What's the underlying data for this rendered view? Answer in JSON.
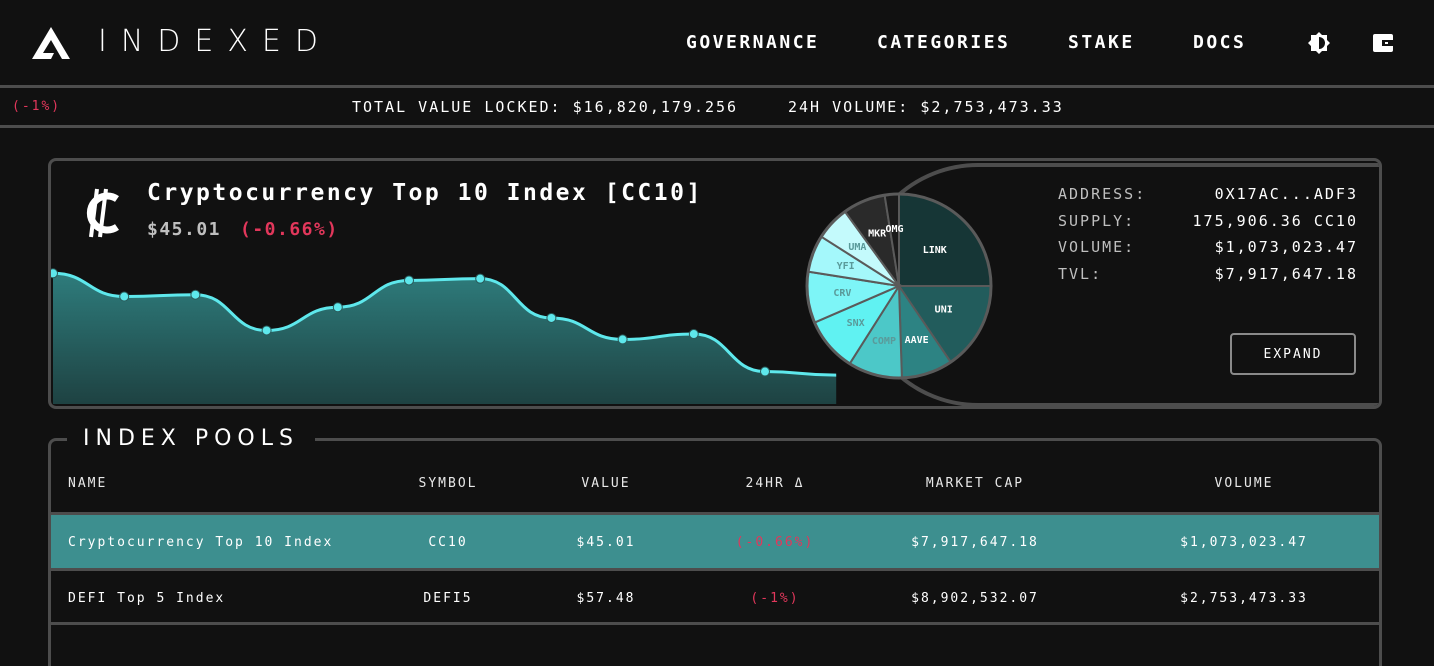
{
  "app": {
    "logo_text": "INDEXED"
  },
  "nav": {
    "governance": "GOVERNANCE",
    "categories": "CATEGORIES",
    "stake": "STAKE",
    "docs": "DOCS"
  },
  "icons": {
    "theme": "brightness-icon",
    "wallet": "wallet-icon",
    "logo": "indexed-logo-icon",
    "card_symbol": "colon-currency-icon"
  },
  "ticker": {
    "delta": "(-1%)",
    "tvl": "TOTAL VALUE LOCKED: $16,820,179.256",
    "volume": "24H VOLUME: $2,753,473.33"
  },
  "index_card": {
    "title": "Cryptocurrency Top 10 Index [CC10]",
    "price": "$45.01",
    "delta": "(-0.66%)",
    "stats": [
      {
        "key": "ADDRESS:",
        "value": "0X17AC...ADF3"
      },
      {
        "key": "SUPPLY:",
        "value": "175,906.36 CC10"
      },
      {
        "key": "VOLUME:",
        "value": "$1,073,023.47"
      },
      {
        "key": "TVL:",
        "value": "$7,917,647.18"
      }
    ],
    "expand_label": "EXPAND"
  },
  "chart_data": [
    {
      "type": "area",
      "x": [
        0,
        1,
        2,
        3,
        4,
        5,
        6,
        7,
        8,
        9,
        10,
        11
      ],
      "values": [
        0.67,
        0.54,
        0.55,
        0.35,
        0.48,
        0.63,
        0.64,
        0.42,
        0.3,
        0.33,
        0.12,
        0.1
      ],
      "color": "#5ee8ec",
      "fill_top": "#2e7c7c",
      "fill_bottom": "#1e4242"
    },
    {
      "type": "pie",
      "categories": [
        "LINK",
        "UNI",
        "AAVE",
        "COMP",
        "SNX",
        "CRV",
        "YFI",
        "UMA",
        "MKR",
        "OMG"
      ],
      "values": [
        25.0,
        15.5,
        9.0,
        9.5,
        9.5,
        9.0,
        6.5,
        6.0,
        7.5,
        2.5
      ],
      "colors": [
        "#163636",
        "#225c5c",
        "#2d8383",
        "#4cc8c8",
        "#60f2f2",
        "#7df5f7",
        "#a4f8fb",
        "#c4fafc",
        "#2a2a2a",
        "#1a1a1a"
      ]
    }
  ],
  "pools": {
    "title": "INDEX POOLS",
    "columns": [
      "NAME",
      "SYMBOL",
      "VALUE",
      "24HR Δ",
      "MARKET CAP",
      "VOLUME"
    ],
    "rows": [
      {
        "name": "Cryptocurrency Top 10 Index",
        "symbol": "CC10",
        "value": "$45.01",
        "change": "(-0.66%)",
        "market_cap": "$7,917,647.18",
        "volume": "$1,073,023.47"
      },
      {
        "name": "DEFI Top 5 Index",
        "symbol": "DEFI5",
        "value": "$57.48",
        "change": "(-1%)",
        "market_cap": "$8,902,532.07",
        "volume": "$2,753,473.33"
      }
    ]
  },
  "colors": {
    "accent": "#5ee8ec",
    "negative": "#e2375b",
    "border": "#4d4d4d",
    "selected_row": "#3d8f8f"
  }
}
